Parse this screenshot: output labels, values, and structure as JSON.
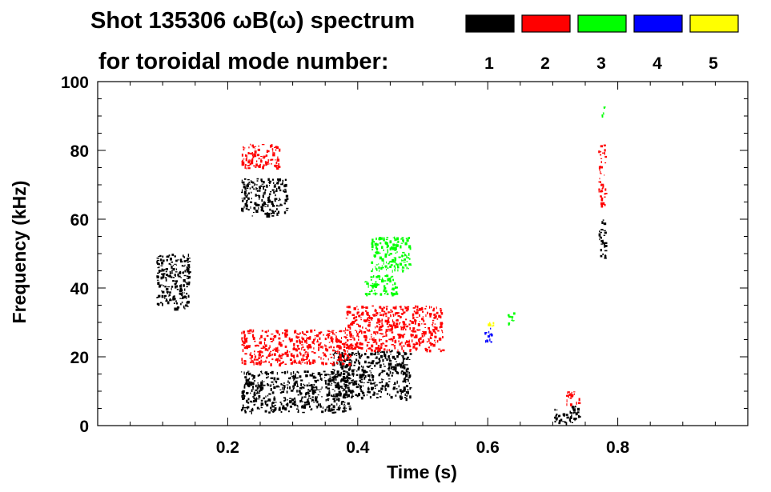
{
  "chart_data": {
    "type": "heatmap",
    "title": "Shot 135306 ωB(ω) spectrum",
    "subtitle": "for toroidal mode number:",
    "xlabel": "Time (s)",
    "ylabel": "Frequency (kHz)",
    "xlim": [
      0.0,
      1.0
    ],
    "ylim": [
      0,
      100
    ],
    "x_ticks": [
      0.2,
      0.4,
      0.6,
      0.8
    ],
    "x_tick_labels": [
      "0.2",
      "0.4",
      "0.6",
      "0.8"
    ],
    "y_ticks": [
      0,
      20,
      40,
      60,
      80,
      100
    ],
    "y_tick_labels": [
      "0",
      "20",
      "40",
      "60",
      "80",
      "100"
    ],
    "grid": false,
    "legend_position": "top-right",
    "legend": [
      {
        "mode": "1",
        "color": "#000000"
      },
      {
        "mode": "2",
        "color": "#ff0000"
      },
      {
        "mode": "3",
        "color": "#00ff00"
      },
      {
        "mode": "4",
        "color": "#0000ff"
      },
      {
        "mode": "5",
        "color": "#ffff00"
      }
    ],
    "series": [
      {
        "mode": "1",
        "color": "#000000",
        "features": [
          {
            "t": [
              0.09,
              0.14
            ],
            "f": [
              34,
              50
            ]
          },
          {
            "t": [
              0.22,
              0.29
            ],
            "f": [
              61,
              72
            ]
          },
          {
            "t": [
              0.22,
              0.39
            ],
            "f": [
              4,
              16
            ]
          },
          {
            "t": [
              0.36,
              0.48
            ],
            "f": [
              8,
              22
            ]
          },
          {
            "t": [
              0.7,
              0.74
            ],
            "f": [
              1,
              6
            ]
          },
          {
            "t": [
              0.77,
              0.78
            ],
            "f": [
              48,
              60
            ]
          }
        ]
      },
      {
        "mode": "2",
        "color": "#ff0000",
        "features": [
          {
            "t": [
              0.22,
              0.28
            ],
            "f": [
              75,
              82
            ]
          },
          {
            "t": [
              0.22,
              0.39
            ],
            "f": [
              18,
              28
            ]
          },
          {
            "t": [
              0.38,
              0.53
            ],
            "f": [
              22,
              35
            ]
          },
          {
            "t": [
              0.72,
              0.74
            ],
            "f": [
              6,
              10
            ]
          },
          {
            "t": [
              0.77,
              0.78
            ],
            "f": [
              64,
              82
            ]
          }
        ]
      },
      {
        "mode": "3",
        "color": "#00ff00",
        "features": [
          {
            "t": [
              0.42,
              0.48
            ],
            "f": [
              45,
              55
            ]
          },
          {
            "t": [
              0.41,
              0.46
            ],
            "f": [
              38,
              44
            ]
          },
          {
            "t": [
              0.63,
              0.64
            ],
            "f": [
              29,
              33
            ]
          },
          {
            "t": [
              0.775,
              0.78
            ],
            "f": [
              90,
              93
            ]
          }
        ]
      },
      {
        "mode": "4",
        "color": "#0000ff",
        "features": [
          {
            "t": [
              0.595,
              0.605
            ],
            "f": [
              24,
              29
            ]
          }
        ]
      },
      {
        "mode": "5",
        "color": "#ffff00",
        "features": [
          {
            "t": [
              0.6,
              0.61
            ],
            "f": [
              29,
              31
            ]
          }
        ]
      }
    ]
  }
}
